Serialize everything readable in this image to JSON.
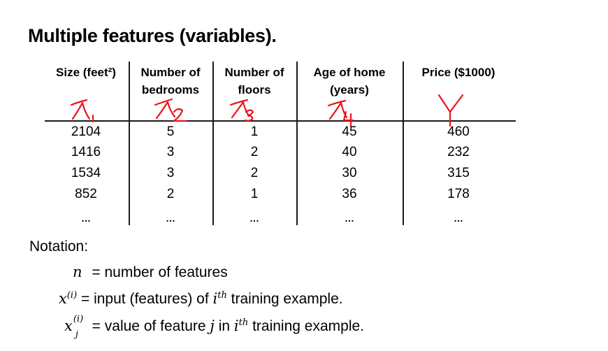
{
  "title": "Multiple features (variables).",
  "table": {
    "headers": [
      {
        "line1": "Size (feet²)",
        "line2": ""
      },
      {
        "line1": "Number of",
        "line2": "bedrooms"
      },
      {
        "line1": "Number of",
        "line2": "floors"
      },
      {
        "line1": "Age of home",
        "line2": "(years)"
      },
      {
        "line1": "Price ($1000)",
        "line2": ""
      }
    ],
    "annotations": [
      "X₁",
      "X₂",
      "X₃",
      "X₄",
      "Y"
    ],
    "rows": [
      [
        "2104",
        "5",
        "1",
        "45",
        "460"
      ],
      [
        "1416",
        "3",
        "2",
        "40",
        "232"
      ],
      [
        "1534",
        "3",
        "2",
        "30",
        "315"
      ],
      [
        "852",
        "2",
        "1",
        "36",
        "178"
      ],
      [
        "…",
        "…",
        "…",
        "…",
        "…"
      ]
    ]
  },
  "annotation_color": "#e8141c",
  "notation": {
    "heading": "Notation:",
    "n_symbol": "n",
    "n_desc": " = number of features",
    "x_symbol": "x",
    "x_sup": "(i)",
    "x_desc_a": " = input (features) of ",
    "x_i": "i",
    "x_th": "th",
    "x_desc_b": " training example.",
    "xj_symbol": "x",
    "xj_sup": "(i)",
    "xj_sub": "j",
    "xj_desc_a": " = value of feature ",
    "xj_j": "j",
    "xj_desc_b": " in ",
    "xj_i": "i",
    "xj_th": "th",
    "xj_desc_c": " training example."
  }
}
